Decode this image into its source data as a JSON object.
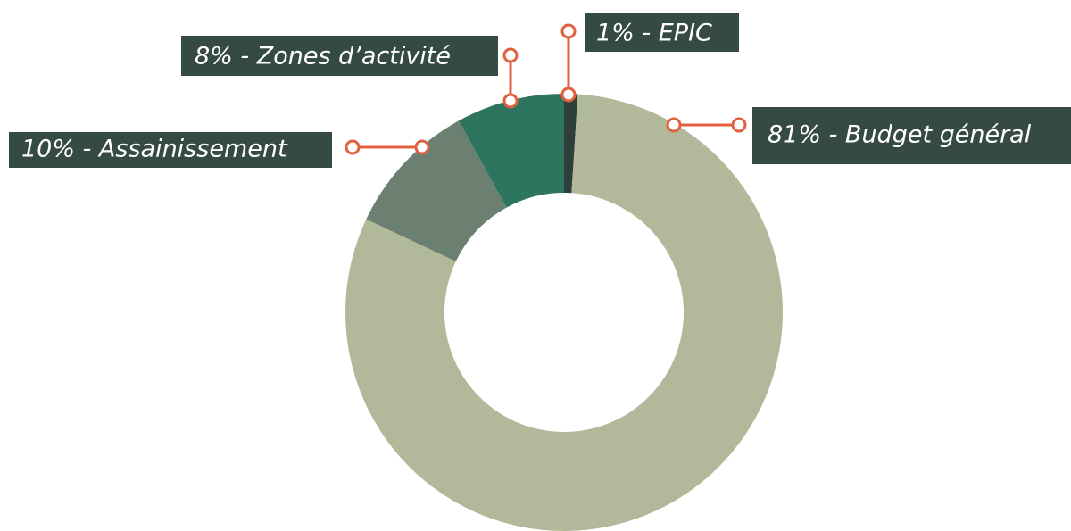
{
  "chart_data": {
    "type": "donut",
    "values": [
      81,
      10,
      8,
      1
    ],
    "value_labels": [
      "81% - Budget général",
      "10% - Assainissement",
      "8% - Zones d’activité",
      "1% - EPIC"
    ],
    "colors": [
      "#b2b99a",
      "#6b8070",
      "#2e7560",
      "#2d3f38"
    ]
  }
}
